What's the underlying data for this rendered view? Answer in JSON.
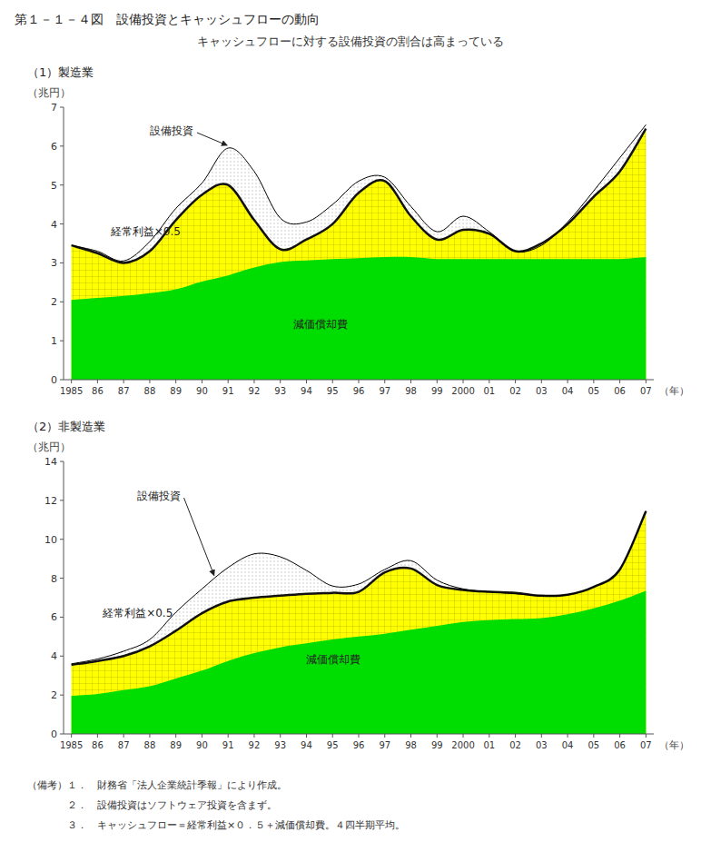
{
  "title": "第１－１－４図　設備投資とキャッシュフローの動向",
  "subtitle": "キャッシュフローに対する設備投資の割合は高まっている",
  "notes": [
    "（備考）１．　財務省「法人企業統計季報」により作成。",
    "　　　　２．　設備投資はソフトウェア投資を含まず。",
    "　　　　３．　キャッシュフロー＝経常利益×０．５＋減価償却費。４四半期平均。"
  ],
  "chart_data": [
    {
      "type": "area",
      "title": "（1）製造業",
      "y_label": "（兆円）",
      "x_label": "（年）",
      "categories": [
        "1985",
        "86",
        "87",
        "88",
        "89",
        "90",
        "91",
        "92",
        "93",
        "94",
        "95",
        "96",
        "97",
        "98",
        "99",
        "2000",
        "01",
        "02",
        "03",
        "04",
        "05",
        "06",
        "07"
      ],
      "series": [
        {
          "name": "減価償却費",
          "color": "#00dd00",
          "values": [
            2.05,
            2.1,
            2.15,
            2.22,
            2.32,
            2.52,
            2.68,
            2.88,
            3.02,
            3.06,
            3.1,
            3.12,
            3.15,
            3.15,
            3.1,
            3.1,
            3.1,
            3.1,
            3.1,
            3.1,
            3.1,
            3.1,
            3.15
          ]
        },
        {
          "name": "経常利益×0.5",
          "color": "#ffff00",
          "values": [
            3.45,
            3.25,
            3.0,
            3.3,
            4.1,
            4.75,
            5.0,
            4.1,
            3.35,
            3.6,
            4.0,
            4.8,
            5.1,
            4.2,
            3.6,
            3.85,
            3.75,
            3.3,
            3.5,
            4.0,
            4.7,
            5.35,
            6.45
          ]
        },
        {
          "name": "設備投資",
          "color": "#000000",
          "values": [
            3.45,
            3.3,
            3.05,
            3.55,
            4.4,
            5.05,
            5.95,
            5.35,
            4.15,
            4.05,
            4.5,
            5.1,
            5.2,
            4.45,
            3.8,
            4.2,
            3.8,
            3.3,
            3.45,
            4.05,
            4.85,
            5.7,
            6.55
          ]
        }
      ],
      "ylim": [
        0,
        7
      ],
      "yticks": [
        0,
        1,
        2,
        3,
        4,
        5,
        6,
        7
      ],
      "grid": false
    },
    {
      "type": "area",
      "title": "（2）非製造業",
      "y_label": "（兆円）",
      "x_label": "（年）",
      "categories": [
        "1985",
        "86",
        "87",
        "88",
        "89",
        "90",
        "91",
        "92",
        "93",
        "94",
        "95",
        "96",
        "97",
        "98",
        "99",
        "2000",
        "01",
        "02",
        "03",
        "04",
        "05",
        "06",
        "07"
      ],
      "series": [
        {
          "name": "減価償却費",
          "color": "#00dd00",
          "values": [
            1.95,
            2.05,
            2.25,
            2.45,
            2.85,
            3.25,
            3.75,
            4.15,
            4.45,
            4.65,
            4.85,
            5.0,
            5.15,
            5.35,
            5.55,
            5.75,
            5.85,
            5.9,
            5.95,
            6.15,
            6.45,
            6.85,
            7.35
          ]
        },
        {
          "name": "経常利益×0.5",
          "color": "#ffff00",
          "values": [
            3.55,
            3.75,
            4.0,
            4.5,
            5.3,
            6.2,
            6.8,
            7.0,
            7.1,
            7.2,
            7.25,
            7.3,
            8.3,
            8.5,
            7.65,
            7.4,
            7.3,
            7.25,
            7.1,
            7.15,
            7.55,
            8.45,
            11.45
          ]
        },
        {
          "name": "設備投資",
          "color": "#000000",
          "values": [
            3.6,
            3.85,
            4.25,
            4.85,
            6.25,
            7.45,
            8.55,
            9.25,
            9.1,
            8.4,
            7.6,
            7.7,
            8.45,
            8.9,
            7.9,
            7.45,
            7.3,
            7.2,
            7.1,
            7.15,
            7.55,
            8.45,
            11.45
          ]
        }
      ],
      "ylim": [
        0,
        14
      ],
      "yticks": [
        0,
        2,
        4,
        6,
        8,
        10,
        12,
        14
      ],
      "grid": false
    }
  ]
}
